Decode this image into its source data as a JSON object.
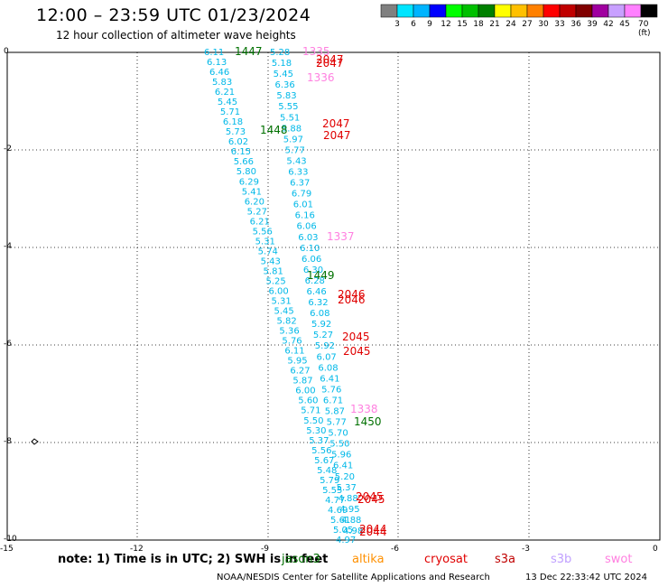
{
  "header": {
    "title": "12:00 – 23:59 UTC 01/23/2024",
    "subtitle": "12 hour collection of altimeter wave heights"
  },
  "color_scale": {
    "labels": [
      "3",
      "6",
      "9",
      "12",
      "15",
      "18",
      "21",
      "24",
      "27",
      "30",
      "33",
      "36",
      "39",
      "42",
      "45",
      "70 (ft)"
    ],
    "colors": [
      "#808080",
      "#00e5ff",
      "#00b4ff",
      "#0000ff",
      "#00ff00",
      "#00c000",
      "#008000",
      "#ffff00",
      "#ffc000",
      "#ff8000",
      "#ff0000",
      "#c00000",
      "#800000",
      "#a000a0",
      "#c8a0ff",
      "#ff80ff",
      "#000000"
    ]
  },
  "axes": {
    "x_ticks": [
      "-15",
      "-12",
      "-9",
      "-6",
      "-3",
      "0"
    ],
    "y_ticks": [
      "0",
      "-2",
      "-4",
      "-6",
      "-8",
      "-10"
    ]
  },
  "tracks": [
    {
      "name": "swh-left",
      "color": "#00b8e8",
      "values": [
        "6.11",
        "6.13",
        "6.46",
        "5.83",
        "6.21",
        "5.45",
        "5.71",
        "6.18",
        "5.73",
        "6.02",
        "6.15",
        "5.66",
        "5.80",
        "6.29",
        "5.41",
        "6.20",
        "5.27",
        "6.21",
        "5.56",
        "5.31",
        "5.74",
        "5.43",
        "5.81",
        "5.25",
        "6.00",
        "5.31",
        "5.45",
        "5.82",
        "5.36",
        "5.76",
        "6.11",
        "5.95",
        "6.27",
        "5.87",
        "6.00",
        "5.60",
        "5.71",
        "5.50",
        "5.30",
        "5.37",
        "5.56",
        "5.67",
        "5.48",
        "5.79",
        "5.55",
        "4.77",
        "4.69",
        "5.61",
        "5.05",
        "4.97"
      ]
    },
    {
      "name": "swh-right",
      "color": "#00b8e8",
      "values": [
        "5.28",
        "5.18",
        "5.45",
        "6.36",
        "5.83",
        "5.55",
        "5.51",
        "5.88",
        "5.97",
        "5.77",
        "5.43",
        "6.33",
        "6.37",
        "6.79",
        "6.01",
        "6.16",
        "6.06",
        "6.03",
        "6.10",
        "6.06",
        "6.30",
        "6.28",
        "6.46",
        "6.32",
        "6.08",
        "5.92",
        "5.27",
        "5.92",
        "6.07",
        "6.08",
        "6.41",
        "5.76",
        "6.71",
        "5.87",
        "5.77",
        "5.70",
        "5.50",
        "5.96",
        "6.41",
        "5.20",
        "5.37",
        "4.88",
        "4.95",
        "4.88",
        "4.98"
      ]
    }
  ],
  "pass_times": [
    {
      "label": "1447",
      "color": "#007000"
    },
    {
      "label": "1335",
      "color": "#ff80e0"
    },
    {
      "label": "2047",
      "color": "#e00000"
    },
    {
      "label": "2047",
      "color": "#e00000"
    },
    {
      "label": "1336",
      "color": "#ff80e0"
    },
    {
      "label": "2047",
      "color": "#e00000"
    },
    {
      "label": "2047",
      "color": "#e00000"
    },
    {
      "label": "1448",
      "color": "#007000"
    },
    {
      "label": "1337",
      "color": "#ff80e0"
    },
    {
      "label": "1449",
      "color": "#007000"
    },
    {
      "label": "2046",
      "color": "#e00000"
    },
    {
      "label": "2046",
      "color": "#e00000"
    },
    {
      "label": "2045",
      "color": "#e00000"
    },
    {
      "label": "2045",
      "color": "#e00000"
    },
    {
      "label": "1338",
      "color": "#ff80e0"
    },
    {
      "label": "1450",
      "color": "#007000"
    },
    {
      "label": "2045",
      "color": "#e00000"
    },
    {
      "label": "2045",
      "color": "#e00000"
    },
    {
      "label": "2044",
      "color": "#e00000"
    },
    {
      "label": "2044",
      "color": "#e00000"
    }
  ],
  "note": "note: 1) Time is in UTC; 2) SWH is in feet",
  "legend": [
    {
      "label": "jason3",
      "color": "#007000"
    },
    {
      "label": "altika",
      "color": "#ff9000"
    },
    {
      "label": "cryosat",
      "color": "#e00000"
    },
    {
      "label": "s3a",
      "color": "#c00000"
    },
    {
      "label": "s3b",
      "color": "#c0a0ff"
    },
    {
      "label": "swot",
      "color": "#ff80e0"
    }
  ],
  "footer": {
    "credit": "NOAA/NESDIS Center for Satellite Applications and Research",
    "timestamp": "13 Dec 22:33:42 UTC 2024"
  }
}
